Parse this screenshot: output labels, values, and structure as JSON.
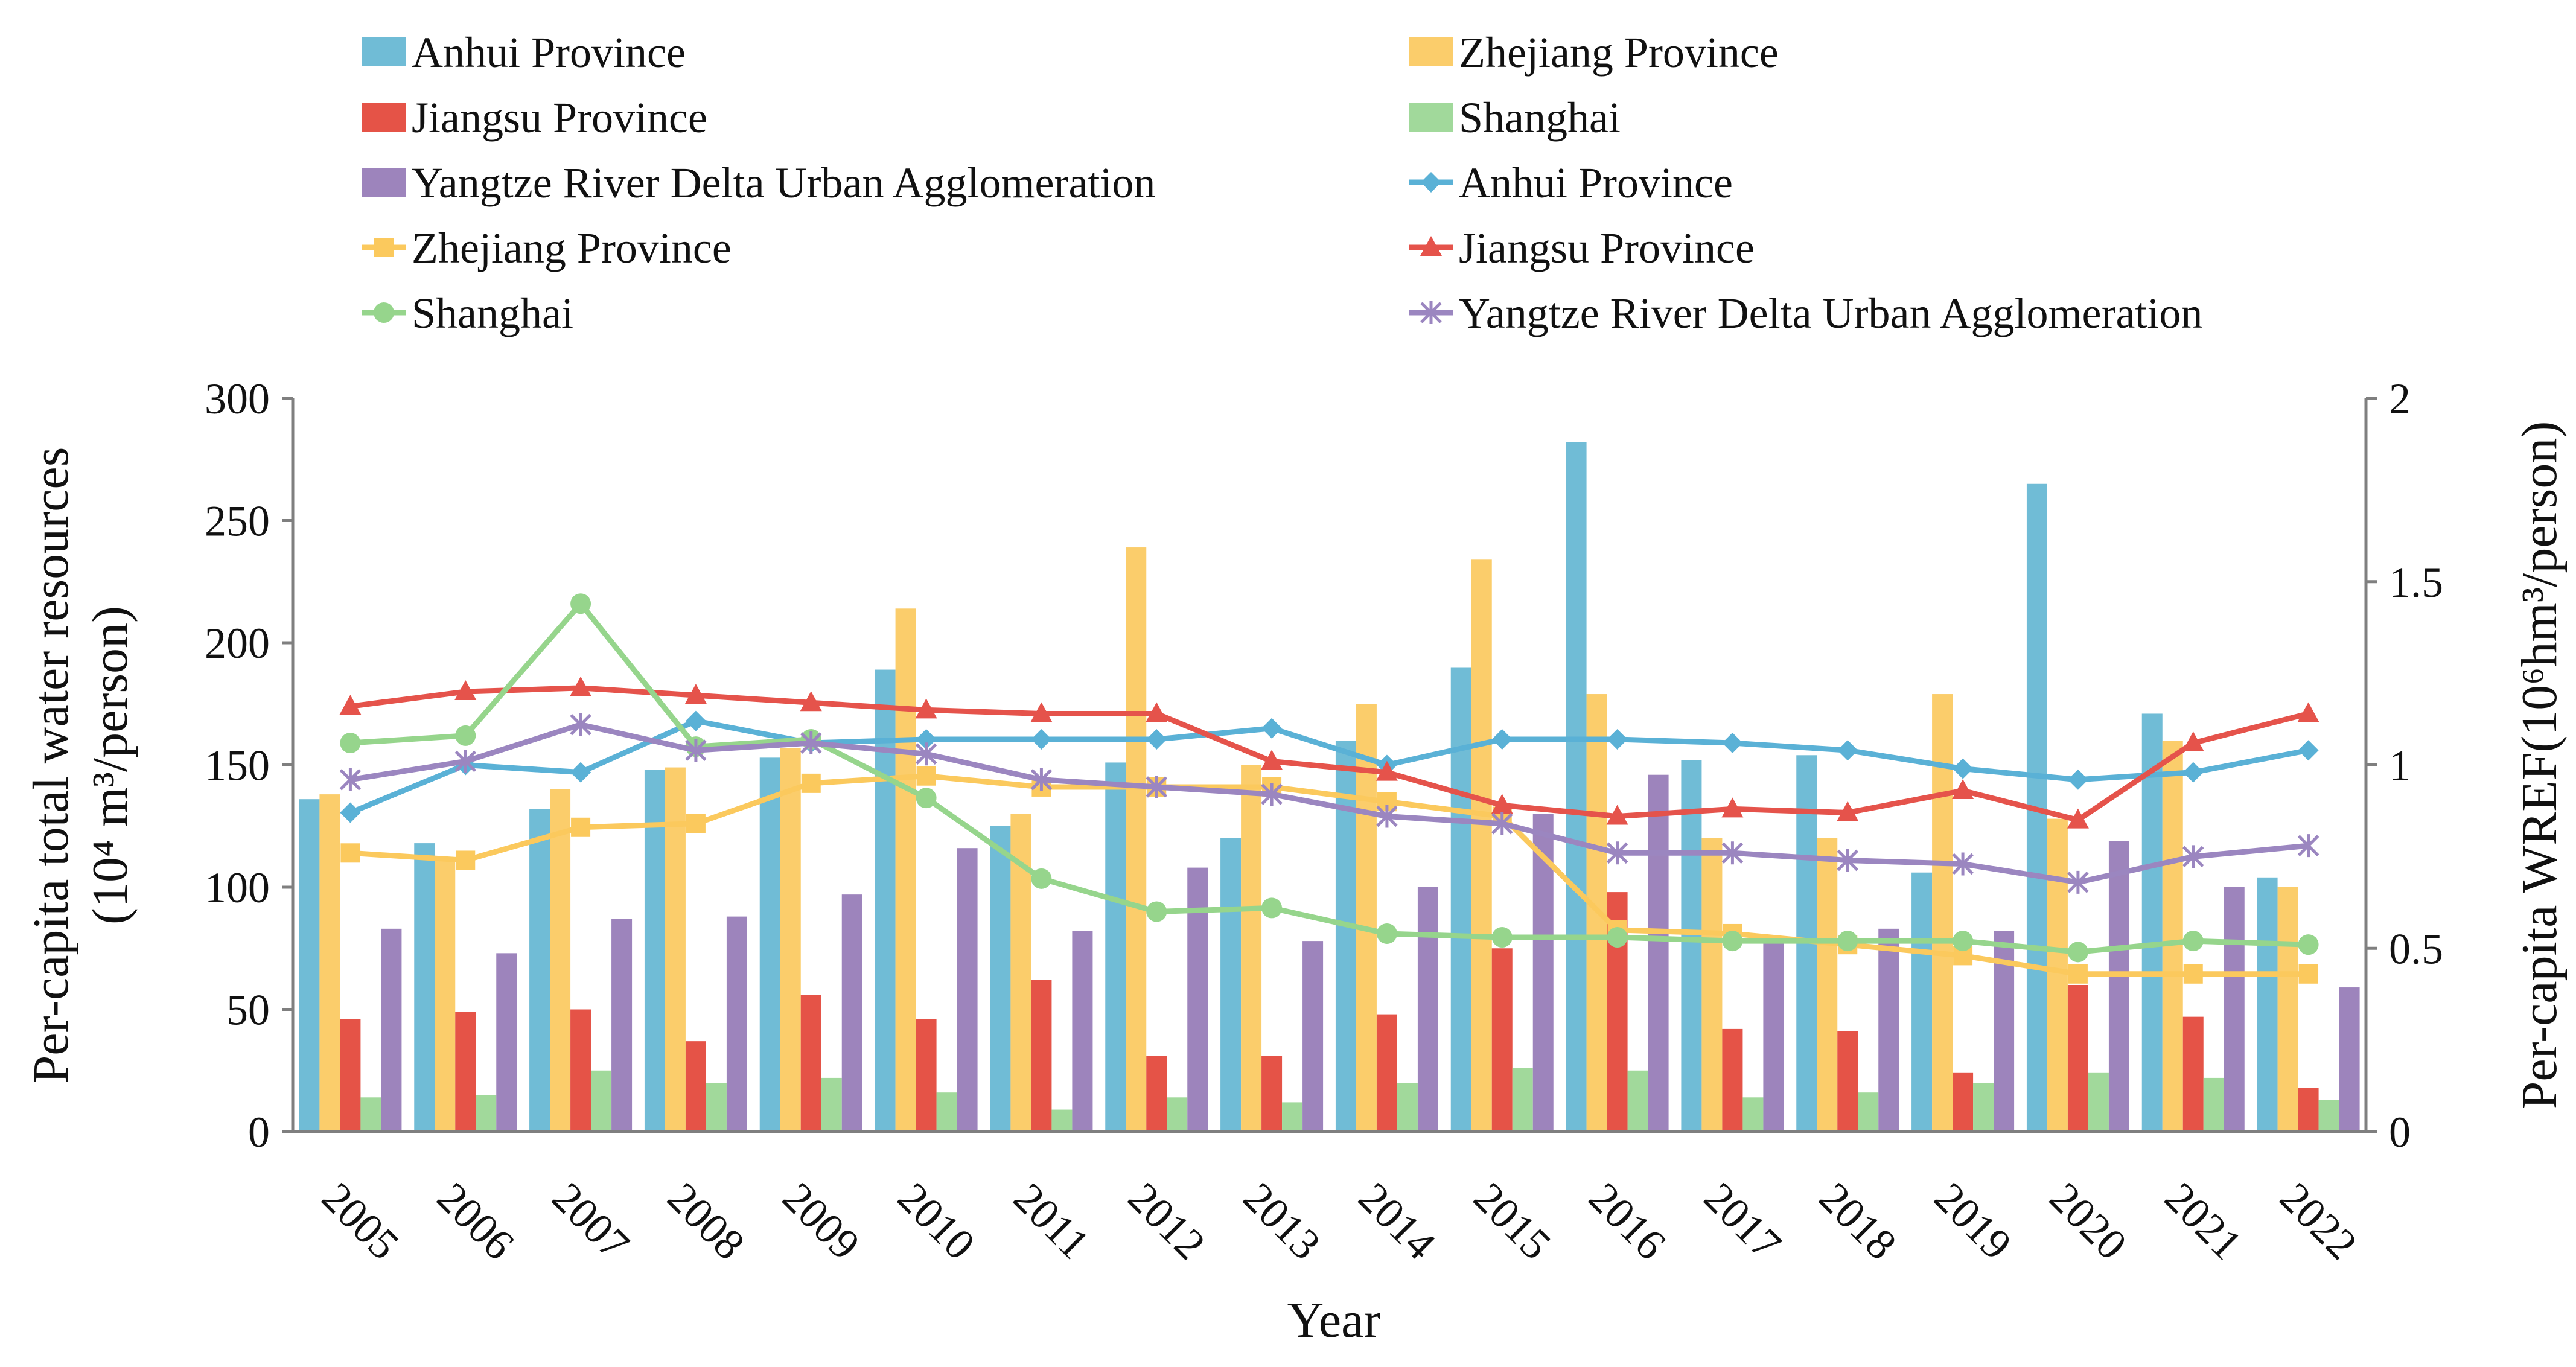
{
  "chart_data": {
    "type": "bar+line",
    "categories": [
      "2005",
      "2006",
      "2007",
      "2008",
      "2009",
      "2010",
      "2011",
      "2012",
      "2013",
      "2014",
      "2015",
      "2016",
      "2017",
      "2018",
      "2019",
      "2020",
      "2021",
      "2022"
    ],
    "xlabel": "Year",
    "ylabel_left_prefix": "Per-capita total water resources",
    "ylabel_left_unit": "(10⁴ m³/person)",
    "ylabel_right": "Per-capita WREF(10⁶hm³/person)",
    "ylim_left": [
      0,
      300
    ],
    "yticks_left": [
      "0",
      "50",
      "100",
      "150",
      "200",
      "250",
      "300"
    ],
    "ylim_right": [
      0,
      2
    ],
    "yticks_right": [
      "0",
      "0.5",
      "1",
      "1.5",
      "2"
    ],
    "bar_series": [
      {
        "name": "Anhui Province",
        "color": "#70bcd6",
        "values": [
          136,
          118,
          132,
          148,
          153,
          189,
          125,
          151,
          120,
          160,
          190,
          282,
          152,
          154,
          106,
          265,
          171,
          104
        ]
      },
      {
        "name": "Zhejiang Province",
        "color": "#fbcd6b",
        "values": [
          138,
          112,
          140,
          149,
          157,
          214,
          130,
          239,
          150,
          175,
          234,
          179,
          120,
          120,
          179,
          128,
          160,
          100
        ]
      },
      {
        "name": "Jiangsu Province",
        "color": "#e55347",
        "values": [
          46,
          49,
          50,
          37,
          56,
          46,
          62,
          31,
          31,
          48,
          75,
          98,
          42,
          41,
          24,
          60,
          47,
          18
        ]
      },
      {
        "name": "Shanghai",
        "color": "#a1d99b",
        "values": [
          14,
          15,
          25,
          20,
          22,
          16,
          9,
          14,
          12,
          20,
          26,
          25,
          14,
          16,
          20,
          24,
          22,
          13
        ]
      },
      {
        "name": "Yangtze River Delta Urban Agglomeration",
        "color": "#9d84bc",
        "values": [
          83,
          73,
          87,
          88,
          97,
          116,
          82,
          108,
          78,
          100,
          130,
          146,
          80,
          83,
          82,
          119,
          100,
          59
        ]
      }
    ],
    "line_series": [
      {
        "name": "Anhui Province",
        "color": "#5ab1d6",
        "marker": "diamond",
        "values": [
          0.87,
          1.0,
          0.98,
          1.12,
          1.06,
          1.07,
          1.07,
          1.07,
          1.1,
          1.0,
          1.07,
          1.07,
          1.06,
          1.04,
          0.99,
          0.96,
          0.98,
          1.04
        ]
      },
      {
        "name": "Zhejiang Province",
        "color": "#fbc95d",
        "marker": "square",
        "values": [
          0.76,
          0.74,
          0.83,
          0.84,
          0.95,
          0.97,
          0.94,
          0.94,
          0.94,
          0.9,
          0.86,
          0.55,
          0.54,
          0.51,
          0.48,
          0.43,
          0.43,
          0.43
        ]
      },
      {
        "name": "Jiangsu Province",
        "color": "#e5534b",
        "marker": "triangle",
        "values": [
          1.16,
          1.2,
          1.21,
          1.19,
          1.17,
          1.15,
          1.14,
          1.14,
          1.01,
          0.98,
          0.89,
          0.86,
          0.88,
          0.87,
          0.93,
          0.85,
          1.06,
          1.14
        ]
      },
      {
        "name": "Shanghai",
        "color": "#96d58c",
        "marker": "circle",
        "values": [
          1.06,
          1.08,
          1.44,
          1.05,
          1.07,
          0.91,
          0.69,
          0.6,
          0.61,
          0.54,
          0.53,
          0.53,
          0.52,
          0.52,
          0.52,
          0.49,
          0.52,
          0.51
        ]
      },
      {
        "name": "Yangtze River Delta Urban Agglomeration",
        "color": "#9b86c0",
        "marker": "asterisk",
        "values": [
          0.96,
          1.01,
          1.11,
          1.04,
          1.06,
          1.03,
          0.96,
          0.94,
          0.92,
          0.86,
          0.84,
          0.76,
          0.76,
          0.74,
          0.73,
          0.68,
          0.75,
          0.78
        ]
      }
    ]
  }
}
